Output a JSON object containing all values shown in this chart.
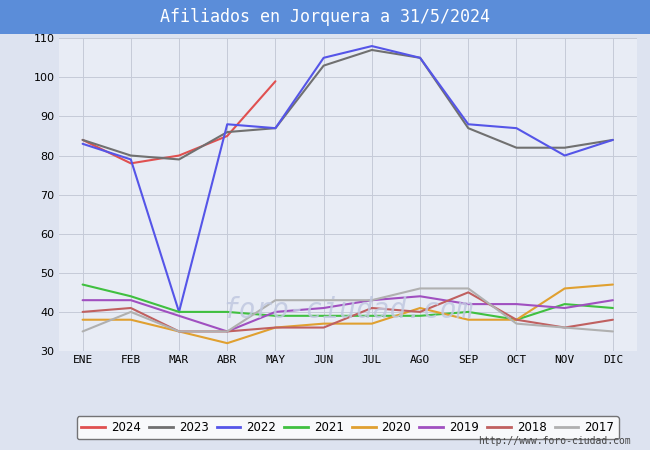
{
  "title": "Afiliados en Jorquera a 31/5/2024",
  "title_bg_color": "#5b8dd9",
  "title_text_color": "white",
  "months": [
    "ENE",
    "FEB",
    "MAR",
    "ABR",
    "MAY",
    "JUN",
    "JUL",
    "AGO",
    "SEP",
    "OCT",
    "NOV",
    "DIC"
  ],
  "ylim": [
    30,
    110
  ],
  "yticks": [
    30,
    40,
    50,
    60,
    70,
    80,
    90,
    100,
    110
  ],
  "series": {
    "2024": {
      "color": "#e05050",
      "data": [
        84,
        78,
        80,
        85,
        99,
        null,
        null,
        null,
        null,
        null,
        null,
        null
      ]
    },
    "2023": {
      "color": "#707070",
      "data": [
        84,
        80,
        79,
        86,
        87,
        103,
        107,
        105,
        87,
        82,
        82,
        84
      ]
    },
    "2022": {
      "color": "#5555e8",
      "data": [
        83,
        79,
        40,
        88,
        87,
        105,
        108,
        105,
        88,
        87,
        80,
        84
      ]
    },
    "2021": {
      "color": "#40c040",
      "data": [
        47,
        44,
        40,
        40,
        39,
        39,
        39,
        39,
        40,
        38,
        42,
        41
      ]
    },
    "2020": {
      "color": "#e0a030",
      "data": [
        38,
        38,
        35,
        32,
        36,
        37,
        37,
        41,
        38,
        38,
        46,
        47
      ]
    },
    "2019": {
      "color": "#a050c0",
      "data": [
        43,
        43,
        39,
        35,
        40,
        41,
        43,
        44,
        42,
        42,
        41,
        43
      ]
    },
    "2018": {
      "color": "#c06060",
      "data": [
        40,
        41,
        35,
        35,
        36,
        36,
        41,
        40,
        45,
        38,
        36,
        38
      ]
    },
    "2017": {
      "color": "#b0b0b0",
      "data": [
        35,
        40,
        35,
        35,
        43,
        43,
        43,
        46,
        46,
        37,
        36,
        35
      ]
    }
  },
  "url": "http://www.foro-ciudad.com",
  "fig_bg_color": "#dde3f0",
  "plot_bg_color": "#e8ecf5",
  "grid_color": "#c5cad8"
}
